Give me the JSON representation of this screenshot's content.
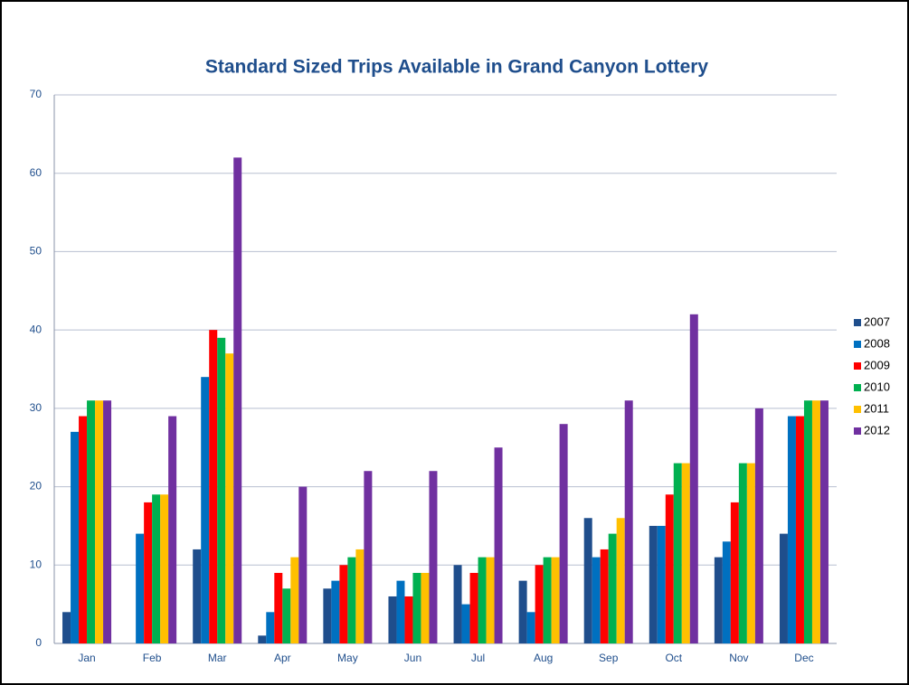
{
  "chart_data": {
    "type": "bar",
    "title": "Standard Sized Trips Available in Grand Canyon Lottery",
    "categories": [
      "Jan",
      "Feb",
      "Mar",
      "Apr",
      "May",
      "Jun",
      "Jul",
      "Aug",
      "Sep",
      "Oct",
      "Nov",
      "Dec"
    ],
    "series": [
      {
        "name": "2007",
        "color": "#1f4e8c",
        "values": [
          4,
          0,
          12,
          1,
          7,
          6,
          10,
          8,
          16,
          15,
          11,
          14
        ]
      },
      {
        "name": "2008",
        "color": "#0070c0",
        "values": [
          27,
          14,
          34,
          4,
          8,
          8,
          5,
          4,
          11,
          15,
          13,
          29
        ]
      },
      {
        "name": "2009",
        "color": "#ff0000",
        "values": [
          29,
          18,
          40,
          9,
          10,
          6,
          9,
          10,
          12,
          19,
          18,
          29
        ]
      },
      {
        "name": "2010",
        "color": "#00b050",
        "values": [
          31,
          19,
          39,
          7,
          11,
          9,
          11,
          11,
          14,
          23,
          23,
          31
        ]
      },
      {
        "name": "2011",
        "color": "#ffc000",
        "values": [
          31,
          19,
          37,
          11,
          12,
          9,
          11,
          11,
          16,
          23,
          23,
          31
        ]
      },
      {
        "name": "2012",
        "color": "#7030a0",
        "values": [
          31,
          29,
          62,
          20,
          22,
          22,
          25,
          28,
          31,
          42,
          30,
          31
        ]
      }
    ],
    "ylim": [
      0,
      70
    ],
    "yticks": [
      0,
      10,
      20,
      30,
      40,
      50,
      60,
      70
    ],
    "grid": true,
    "legend": "right"
  }
}
